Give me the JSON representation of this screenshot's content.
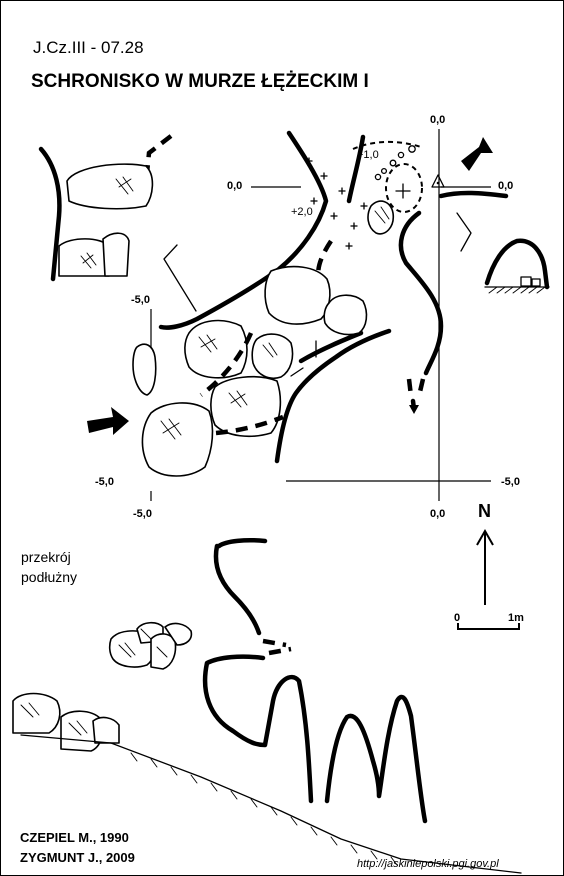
{
  "header": {
    "code": "J.Cz.III - 07.28",
    "title": "SCHRONISKO W MURZE ŁĘŻECKIM I"
  },
  "levels": {
    "top_center": "0,0",
    "left_mid": "0,0",
    "right_mid": "0,0",
    "bottom_center": "0,0",
    "upper_plus1": "+1,0",
    "upper_plus2": "+2,0",
    "left_top_minus5": "-5,0",
    "left_bottom_minus5": "-5,0",
    "left_bottom2_minus5": "-5,0",
    "right_bottom_minus5": "-5,0"
  },
  "section_label": {
    "line1": "przekrój",
    "line2": "podłużny"
  },
  "compass": {
    "label": "N"
  },
  "scale": {
    "start": "0",
    "end": "1m"
  },
  "authors": {
    "line1": "CZEPIEL M., 1990",
    "line2": "ZYGMUNT J., 2009"
  },
  "source_url": "http://jaskiniepolski.pgi.gov.pl",
  "colors": {
    "ink": "#000000",
    "paper": "#ffffff"
  }
}
